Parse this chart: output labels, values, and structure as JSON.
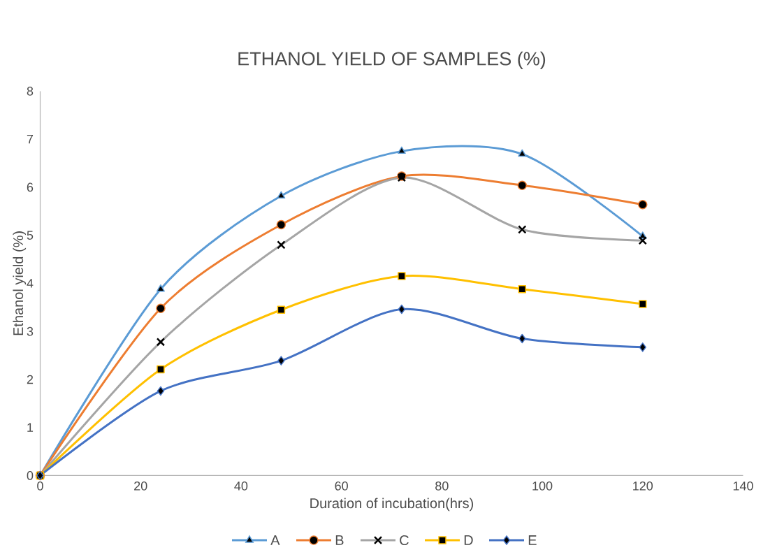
{
  "chart_data": {
    "type": "line",
    "title": "ETHANOL YIELD OF SAMPLES (%)",
    "xlabel": "Duration of incubation(hrs)",
    "ylabel": "Ethanol yield  (%)",
    "x": [
      0,
      24,
      48,
      72,
      96,
      120
    ],
    "series": [
      {
        "name": "A",
        "color": "#5b9bd5",
        "marker": "triangle",
        "values": [
          0,
          3.88,
          5.82,
          6.75,
          6.69,
          4.98
        ]
      },
      {
        "name": "B",
        "color": "#ed7d31",
        "marker": "circle",
        "values": [
          0,
          3.48,
          5.22,
          6.23,
          6.04,
          5.64
        ]
      },
      {
        "name": "C",
        "color": "#a5a5a5",
        "marker": "cross",
        "values": [
          0,
          2.78,
          4.8,
          6.2,
          5.12,
          4.89
        ]
      },
      {
        "name": "D",
        "color": "#ffc000",
        "marker": "square",
        "values": [
          0,
          2.21,
          3.45,
          4.15,
          3.88,
          3.57
        ]
      },
      {
        "name": "E",
        "color": "#4472c4",
        "marker": "diamond",
        "values": [
          0,
          1.76,
          2.39,
          3.46,
          2.85,
          2.67
        ]
      }
    ],
    "xlim": [
      0,
      140
    ],
    "ylim": [
      0,
      8
    ],
    "xticks": [
      0,
      20,
      40,
      60,
      80,
      100,
      120,
      140
    ],
    "yticks": [
      0,
      1,
      2,
      3,
      4,
      5,
      6,
      7,
      8
    ],
    "legend": "bottom",
    "grid": false,
    "line_style": "solid"
  }
}
